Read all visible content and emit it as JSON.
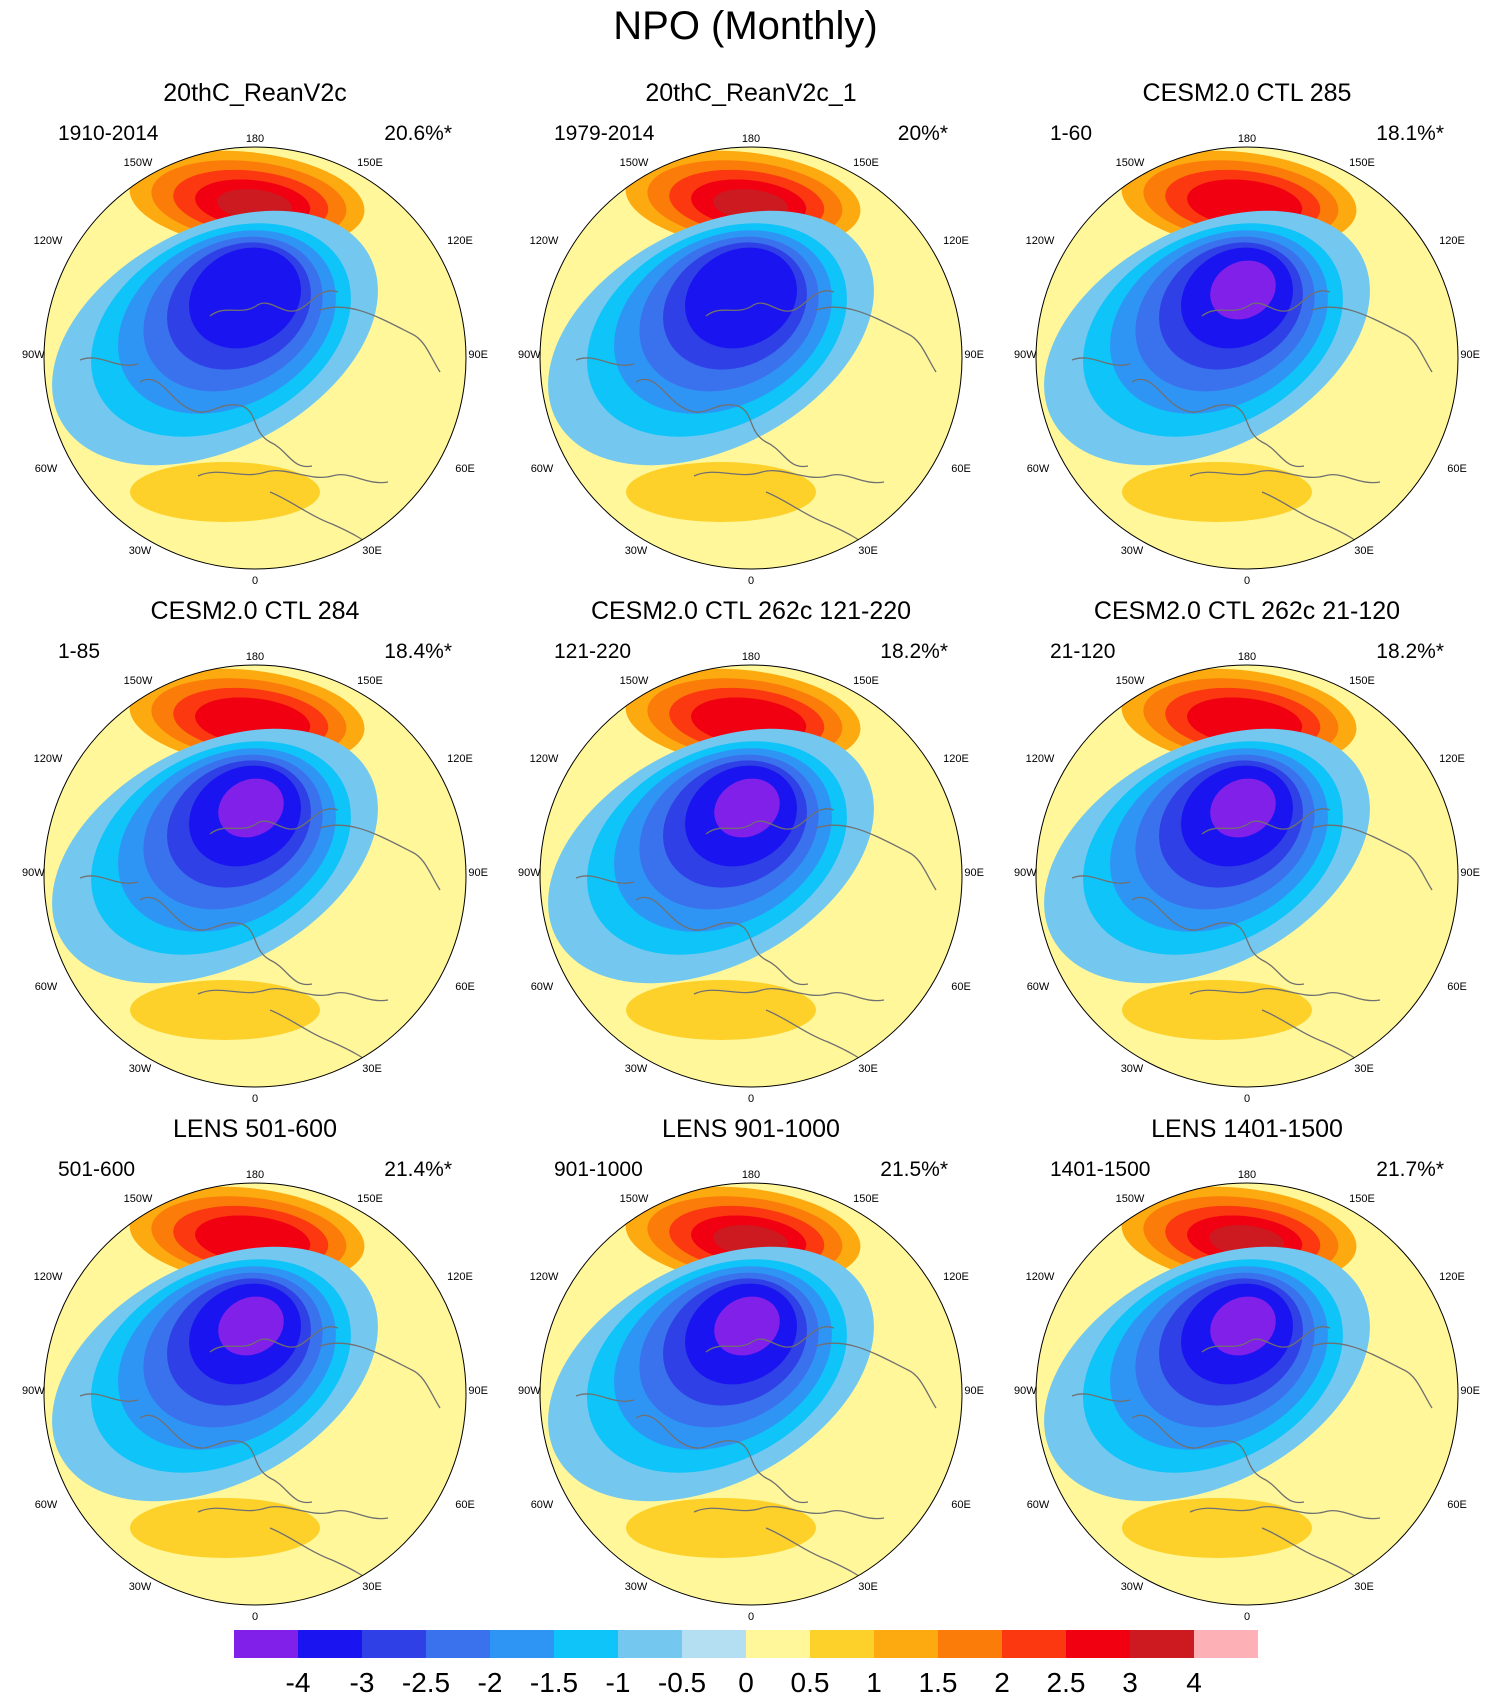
{
  "figure": {
    "title": "NPO (Monthly)"
  },
  "palette": {
    "purple": "#8020e8",
    "blue_dark": "#1a14f0",
    "blue2": "#2f40e6",
    "blue3": "#3a72ee",
    "blue4": "#2f95f5",
    "blue5": "#0ec4f8",
    "blue6": "#74c8ef",
    "blue7": "#b4dff2",
    "yellow_light": "#fff79a",
    "yellow": "#fdd12a",
    "orange_light": "#fdaa10",
    "orange": "#fc7c0a",
    "red_orange": "#fb3810",
    "red": "#f00010",
    "dark_red": "#cc1a20",
    "pink": "#fdb1b6",
    "coast": "#707070"
  },
  "map_labels": {
    "top": "180",
    "upper_left": "150W",
    "upper_right": "150E",
    "mid_left_upper": "120W",
    "mid_right_upper": "120E",
    "left": "90W",
    "right": "90E",
    "mid_left_lower": "60W",
    "mid_right_lower": "60E",
    "lower_left": "30W",
    "lower_right": "30E",
    "bottom": "0"
  },
  "panels": [
    {
      "title": "20thC_ReanV2c",
      "years": "1910-2014",
      "percent": "20.6%*",
      "icon": "polar-map-icon",
      "pos_peak": 2.5,
      "neg_peak": -3.5
    },
    {
      "title": "20thC_ReanV2c_1",
      "years": "1979-2014",
      "percent": "20%*",
      "icon": "polar-map-icon",
      "pos_peak": 3,
      "neg_peak": -3.5
    },
    {
      "title": "CESM2.0 CTL 285",
      "years": "1-60",
      "percent": "18.1%*",
      "icon": "polar-map-icon",
      "pos_peak": 2,
      "neg_peak": -4
    },
    {
      "title": "CESM2.0 CTL 284",
      "years": "1-85",
      "percent": "18.4%*",
      "icon": "polar-map-icon",
      "pos_peak": 2,
      "neg_peak": -4
    },
    {
      "title": "CESM2.0 CTL 262c 121-220",
      "years": "121-220",
      "percent": "18.2%*",
      "icon": "polar-map-icon",
      "pos_peak": 2,
      "neg_peak": -4
    },
    {
      "title": "CESM2.0 CTL 262c 21-120",
      "years": "21-120",
      "percent": "18.2%*",
      "icon": "polar-map-icon",
      "pos_peak": 2,
      "neg_peak": -4
    },
    {
      "title": "LENS 501-600",
      "years": "501-600",
      "percent": "21.4%*",
      "icon": "polar-map-icon",
      "pos_peak": 2,
      "neg_peak": -4
    },
    {
      "title": "LENS 901-1000",
      "years": "901-1000",
      "percent": "21.5%*",
      "icon": "polar-map-icon",
      "pos_peak": 3,
      "neg_peak": -4
    },
    {
      "title": "LENS 1401-1500",
      "years": "1401-1500",
      "percent": "21.7%*",
      "icon": "polar-map-icon",
      "pos_peak": 2.5,
      "neg_peak": -4
    }
  ],
  "colorbar": {
    "labels": [
      "-4",
      "-3",
      "-2.5",
      "-2",
      "-1.5",
      "-1",
      "-0.5",
      "0",
      "0.5",
      "1",
      "1.5",
      "2",
      "2.5",
      "3",
      "4"
    ],
    "colors": [
      "#8020e8",
      "#1a14f0",
      "#2f40e6",
      "#3a72ee",
      "#2f95f5",
      "#0ec4f8",
      "#74c8ef",
      "#b4dff2",
      "#fff79a",
      "#fdd12a",
      "#fdaa10",
      "#fc7c0a",
      "#fb3810",
      "#f00010",
      "#cc1a20",
      "#fdb1b6"
    ]
  }
}
